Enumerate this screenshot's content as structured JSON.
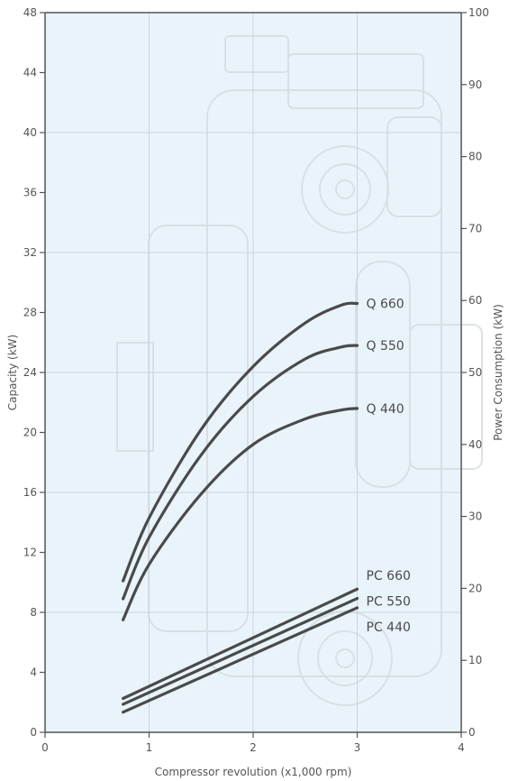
{
  "chart_data": {
    "type": "line",
    "xlabel": "Compressor revolution (x1,000 rpm)",
    "ylabel": "Capacity (kW)",
    "y2label": "Power Consumption (kW)",
    "xlim": [
      0,
      4
    ],
    "ylim": [
      0,
      48
    ],
    "y2lim": [
      0,
      100
    ],
    "x_ticks": [
      "0",
      "1",
      "2",
      "3",
      "4"
    ],
    "y_ticks": [
      "0",
      "4",
      "8",
      "12",
      "16",
      "20",
      "24",
      "28",
      "32",
      "36",
      "40",
      "44",
      "48"
    ],
    "y2_ticks": [
      "0",
      "10",
      "20",
      "30",
      "40",
      "50",
      "60",
      "70",
      "80",
      "90",
      "100"
    ],
    "grid": true,
    "colors": {
      "plot_bg": "#e9f4fa",
      "line": "#4a4a4a",
      "axis": "#555555",
      "grid": "#c9d4dc"
    },
    "series": [
      {
        "name": "Q 660",
        "axis": "left",
        "x": [
          0.75,
          1.0,
          1.5,
          2.0,
          2.5,
          2.85,
          3.0
        ],
        "values": [
          10.1,
          14.3,
          20.2,
          24.4,
          27.3,
          28.5,
          28.6
        ]
      },
      {
        "name": "Q 550",
        "axis": "left",
        "x": [
          0.75,
          1.0,
          1.5,
          2.0,
          2.5,
          2.85,
          3.0
        ],
        "values": [
          8.9,
          13.0,
          18.5,
          22.4,
          24.9,
          25.7,
          25.8
        ]
      },
      {
        "name": "Q 440",
        "axis": "left",
        "x": [
          0.75,
          1.0,
          1.5,
          2.0,
          2.5,
          2.85,
          3.0
        ],
        "values": [
          7.5,
          11.2,
          15.9,
          19.2,
          20.9,
          21.5,
          21.6
        ]
      },
      {
        "name": "PC 660",
        "axis": "right",
        "x": [
          0.75,
          3.0
        ],
        "values": [
          4.7,
          19.9
        ]
      },
      {
        "name": "PC 550",
        "axis": "right",
        "x": [
          0.75,
          3.0
        ],
        "values": [
          3.9,
          18.6
        ]
      },
      {
        "name": "PC 440",
        "axis": "right",
        "x": [
          0.75,
          3.0
        ],
        "values": [
          2.8,
          17.3
        ]
      }
    ]
  }
}
